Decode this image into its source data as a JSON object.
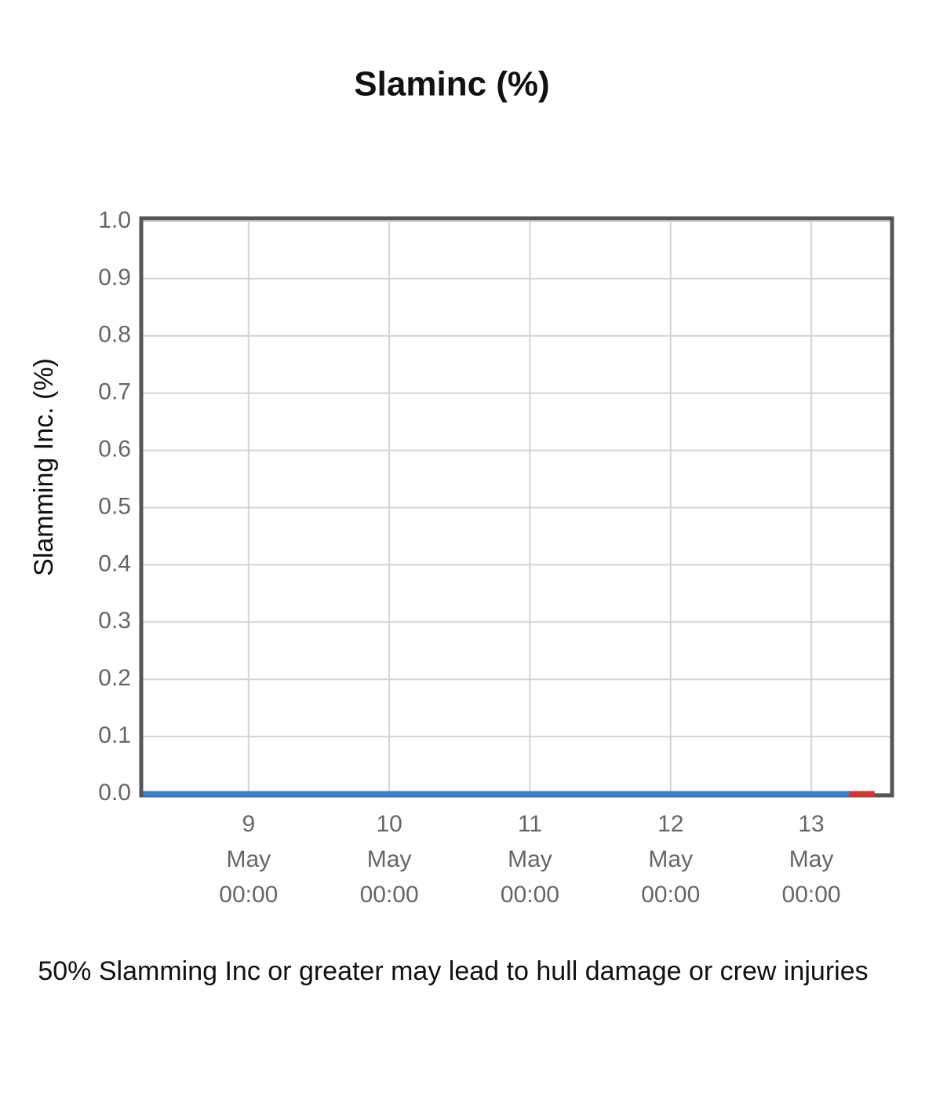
{
  "chart_data": {
    "type": "line",
    "title": "Slaminc (%)",
    "ylabel": "Slamming Inc. (%)",
    "annotation": "50% Slamming Inc or greater may lead to hull damage or crew injuries",
    "series": [
      {
        "color": "#3a7fd5",
        "x": [
          8.25,
          13.27
        ],
        "values": [
          0,
          0
        ]
      },
      {
        "color": "#e0302b",
        "x": [
          13.27,
          13.45
        ],
        "values": [
          0,
          0
        ]
      }
    ],
    "xlim": [
      8.237,
      13.574
    ],
    "xticks": [
      {
        "value": 9,
        "label": "9\nMay\n00:00"
      },
      {
        "value": 10,
        "label": "10\nMay\n00:00"
      },
      {
        "value": 11,
        "label": "11\nMay\n00:00"
      },
      {
        "value": 12,
        "label": "12\nMay\n00:00"
      },
      {
        "value": 13,
        "label": "13\nMay\n00:00"
      }
    ],
    "ylim": [
      0,
      1
    ],
    "yticks": [
      {
        "value": 0,
        "label": "0.0"
      },
      0.1,
      0.2,
      0.3,
      0.4,
      0.5,
      0.6,
      0.7,
      0.8,
      0.9,
      {
        "value": 1,
        "label": "1.0"
      }
    ],
    "grid": true
  }
}
